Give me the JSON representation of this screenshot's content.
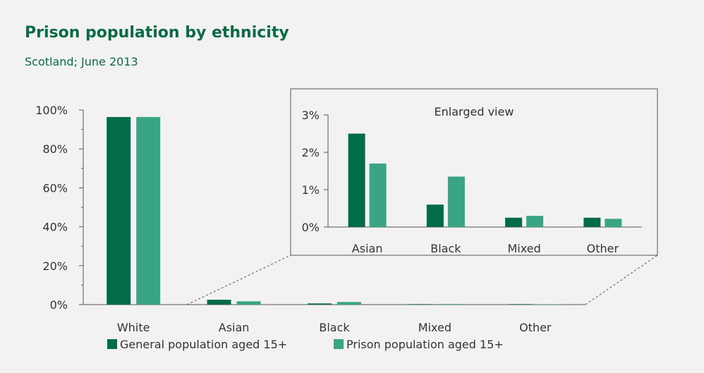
{
  "title": "Prison population by ethnicity",
  "subtitle": "Scotland; June 2013",
  "colors": {
    "general": "#026b47",
    "prison": "#3aa585",
    "title": "#0a6b45",
    "axis": "#555555",
    "background": "#f2f2f2"
  },
  "chart_data": [
    {
      "type": "bar",
      "categories": [
        "White",
        "Asian",
        "Black",
        "Mixed",
        "Other"
      ],
      "series": [
        {
          "name": "General population aged 15+",
          "values": [
            96.4,
            2.5,
            0.6,
            0.25,
            0.25
          ]
        },
        {
          "name": "Prison population aged 15+",
          "values": [
            96.4,
            1.7,
            1.35,
            0.3,
            0.22
          ]
        }
      ],
      "ylim": [
        0,
        100
      ],
      "yticks": [
        "0%",
        "20%",
        "40%",
        "60%",
        "80%",
        "100%"
      ],
      "grid": false,
      "legend": "bottom"
    },
    {
      "type": "bar",
      "label": "Enlarged view",
      "categories": [
        "Asian",
        "Black",
        "Mixed",
        "Other"
      ],
      "series": [
        {
          "name": "General population aged 15+",
          "values": [
            2.5,
            0.6,
            0.25,
            0.25
          ]
        },
        {
          "name": "Prison population aged 15+",
          "values": [
            1.7,
            1.35,
            0.3,
            0.22
          ]
        }
      ],
      "ylim": [
        0,
        3
      ],
      "yticks": [
        "0%",
        "1%",
        "2%",
        "3%"
      ],
      "grid": false
    }
  ]
}
